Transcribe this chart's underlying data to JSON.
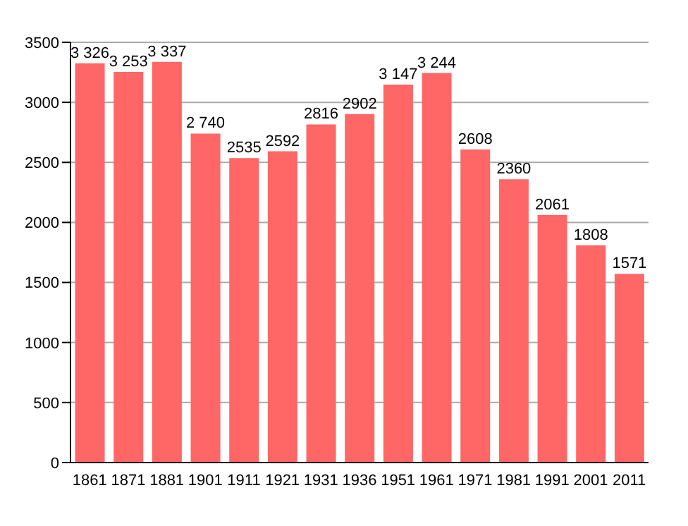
{
  "chart_data": {
    "type": "bar",
    "categories": [
      "1861",
      "1871",
      "1881",
      "1901",
      "1911",
      "1921",
      "1931",
      "1936",
      "1951",
      "1961",
      "1971",
      "1981",
      "1991",
      "2001",
      "2011"
    ],
    "values": [
      3326,
      3253,
      3337,
      2740,
      2535,
      2592,
      2816,
      2902,
      3147,
      3244,
      2608,
      2360,
      2061,
      1808,
      1571
    ],
    "value_labels": [
      "3 326",
      "3 253",
      "3 337",
      "2 740",
      "2535",
      "2592",
      "2816",
      "2902",
      "3 147",
      "3 244",
      "2608",
      "2360",
      "2061",
      "1808",
      "1571"
    ],
    "color": "#ff6666",
    "ylim": [
      0,
      3500
    ],
    "yticks": [
      0,
      500,
      1000,
      1500,
      2000,
      2500,
      3000,
      3500
    ],
    "grid": "y"
  }
}
